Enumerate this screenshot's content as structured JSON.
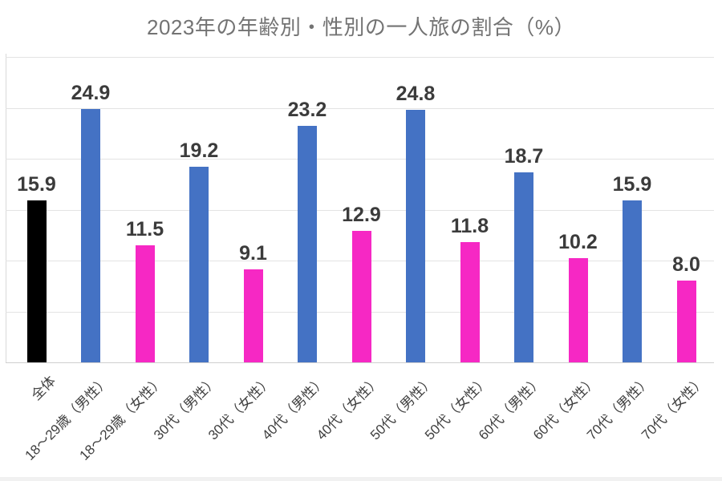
{
  "chart_data": {
    "type": "bar",
    "title": "2023年の年齢別・性別の一人旅の割合（%）",
    "categories": [
      "全体",
      "18〜29歳（男性）",
      "18〜29歳（女性）",
      "30代（男性）",
      "30代（女性）",
      "40代（男性）",
      "40代（女性）",
      "50代（男性）",
      "50代（女性）",
      "60代（男性）",
      "60代（女性）",
      "70代（男性）",
      "70代（女性）"
    ],
    "values": [
      15.9,
      24.9,
      11.5,
      19.2,
      9.1,
      23.2,
      12.9,
      24.8,
      11.8,
      18.7,
      10.2,
      15.9,
      8.0
    ],
    "value_label_format": "one-decimal",
    "bar_colors": [
      "#000000",
      "#4472C4",
      "#F628C4",
      "#4472C4",
      "#F628C4",
      "#4472C4",
      "#F628C4",
      "#4472C4",
      "#F628C4",
      "#4472C4",
      "#F628C4",
      "#4472C4",
      "#F628C4"
    ],
    "palette": {
      "overall": "#000000",
      "male": "#4472C4",
      "female": "#F628C4"
    },
    "xlabel": "",
    "ylabel": "",
    "ylim": [
      0,
      30
    ],
    "gridline_step": 5,
    "grid": "horizontal",
    "legend": "none",
    "y_tick_labels_visible": false,
    "title_color": "#737373",
    "value_label_color": "#3b3b3b",
    "axis_label_color": "#404040",
    "gridline_color": "#e3e3e3"
  }
}
